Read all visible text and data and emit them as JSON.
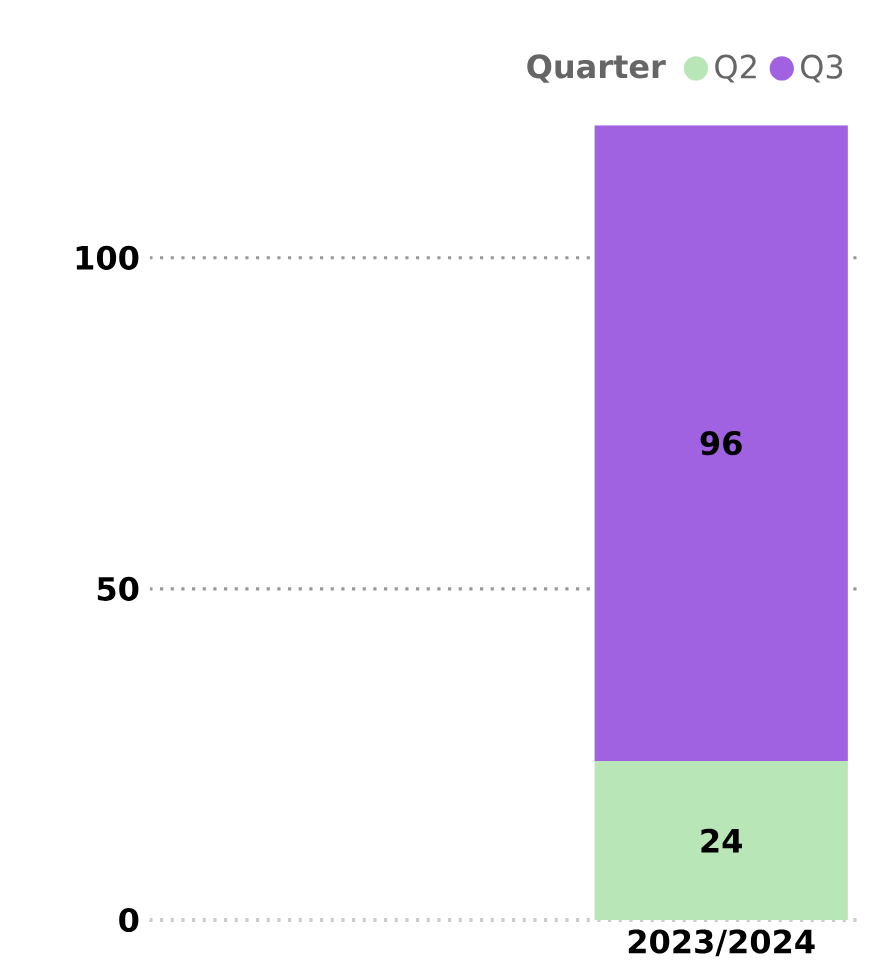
{
  "chart_data": {
    "type": "bar",
    "stacked": true,
    "categories": [
      "2023/2024"
    ],
    "legend_title": "Quarter",
    "legend": "top right",
    "grid": "y",
    "data_labels": true,
    "series": [
      {
        "name": "Q2",
        "color": "#b9e6b6",
        "values": [
          24
        ]
      },
      {
        "name": "Q3",
        "color": "#a062e0",
        "values": [
          96
        ]
      }
    ],
    "ylim": [
      0,
      120
    ],
    "yticks": [
      0,
      50,
      100
    ]
  }
}
